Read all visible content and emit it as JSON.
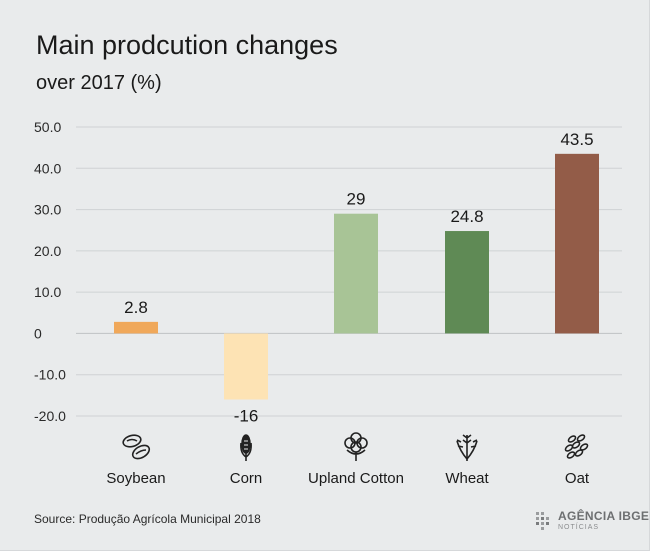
{
  "chart_data": {
    "type": "bar",
    "title": "Main prodcution changes",
    "subtitle": "over 2017 (%)",
    "categories": [
      "Soybean",
      "Corn",
      "Upland Cotton",
      "Wheat",
      "Oat"
    ],
    "values": [
      2.8,
      -16,
      29,
      24.8,
      43.5
    ],
    "value_labels": [
      "2.8",
      "-16",
      "29",
      "24.8",
      "43.5"
    ],
    "colors": [
      "#f0a85a",
      "#fde3b4",
      "#a8c496",
      "#5f8a55",
      "#935c48"
    ],
    "icons": [
      "soybean-icon",
      "corn-icon",
      "cotton-icon",
      "wheat-icon",
      "oat-icon"
    ],
    "y_ticks": [
      50,
      40,
      30,
      20,
      10,
      0,
      -10,
      -20
    ],
    "y_tick_labels": [
      "50.0",
      "40.0",
      "30.0",
      "20.0",
      "10.0",
      "0",
      "-10.0",
      "-20.0"
    ],
    "ylim": [
      -20,
      50
    ],
    "grid": true,
    "legend": "none"
  },
  "footer": {
    "source": "Source: Produção Agrícola Municipal 2018",
    "logo_text": "AGÊNCIA IBGE",
    "logo_sub": "NOTÍCIAS"
  }
}
